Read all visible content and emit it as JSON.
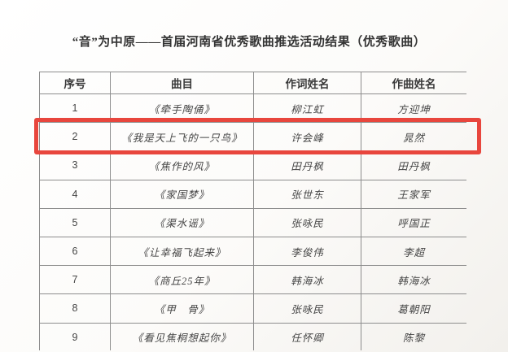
{
  "page_title": "“音”为中原——首届河南省优秀歌曲推选活动结果（优秀歌曲）",
  "table": {
    "headers": [
      "序号",
      "曲目",
      "作词姓名",
      "作曲姓名"
    ],
    "rows": [
      {
        "no": "1",
        "song": "《牵手陶俑》",
        "lyricist": "柳江虹",
        "composer": "方迎坤"
      },
      {
        "no": "2",
        "song": "《我是天上飞的一只鸟》",
        "lyricist": "许会峰",
        "composer": "晁然"
      },
      {
        "no": "3",
        "song": "《焦作的风》",
        "lyricist": "田丹枫",
        "composer": "田丹枫"
      },
      {
        "no": "4",
        "song": "《家国梦》",
        "lyricist": "张世东",
        "composer": "王家军"
      },
      {
        "no": "5",
        "song": "《渠水谣》",
        "lyricist": "张咏民",
        "composer": "呼国正"
      },
      {
        "no": "6",
        "song": "《让幸福飞起来》",
        "lyricist": "李俊伟",
        "composer": "李超"
      },
      {
        "no": "7",
        "song": "《商丘25年》",
        "lyricist": "韩海冰",
        "composer": "韩海冰"
      },
      {
        "no": "8",
        "song": "《甲　骨》",
        "lyricist": "张咏民",
        "composer": "葛朝阳"
      },
      {
        "no": "9",
        "song": "《看见焦桐想起你》",
        "lyricist": "任怀卿",
        "composer": "陈黎"
      }
    ],
    "highlighted_row_index": 1
  },
  "highlight": {
    "border_color": "#e8463d"
  }
}
